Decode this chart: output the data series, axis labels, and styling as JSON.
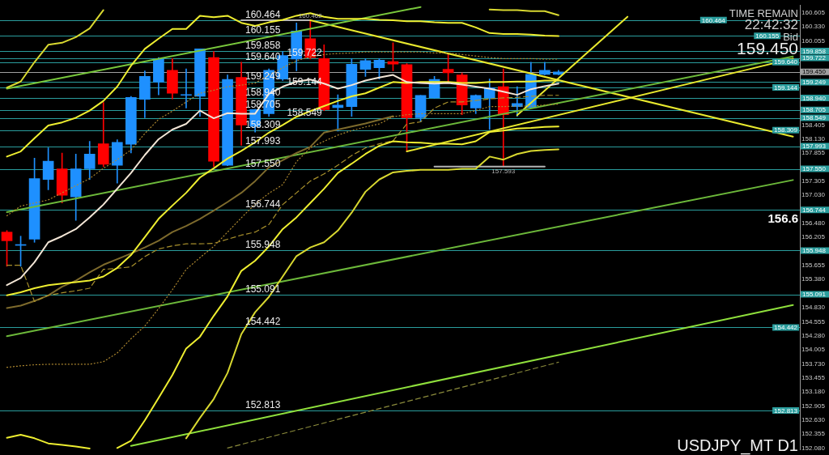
{
  "chart_data": {
    "type": "candlestick",
    "title": "USDJPY_MT D1",
    "categories": [
      null,
      null,
      null,
      null,
      null,
      null,
      null,
      null,
      null,
      null,
      null,
      null,
      null,
      null,
      null,
      null,
      null,
      null,
      null,
      null,
      null,
      null,
      null,
      null,
      null,
      null,
      null,
      null,
      null,
      null,
      null,
      null,
      null,
      null,
      null,
      null,
      null,
      null,
      null,
      null,
      null,
      null,
      null,
      null,
      null,
      null,
      null,
      null,
      null,
      null,
      null,
      null,
      null,
      null,
      null,
      null,
      null,
      null
    ],
    "ohlc": [
      [
        156.31,
        156.34,
        155.64,
        156.14
      ],
      [
        156.05,
        156.23,
        155.64,
        156.06
      ],
      [
        156.17,
        157.76,
        156.11,
        157.36
      ],
      [
        157.34,
        157.96,
        157.14,
        157.7
      ],
      [
        157.55,
        157.86,
        156.88,
        157.03
      ],
      [
        157.0,
        157.84,
        156.54,
        157.55
      ],
      [
        157.55,
        158.09,
        157.34,
        157.84
      ],
      [
        158.04,
        158.85,
        157.59,
        157.64
      ],
      [
        157.62,
        158.12,
        157.27,
        158.07
      ],
      [
        158.03,
        158.97,
        157.86,
        158.95
      ],
      [
        158.91,
        159.47,
        158.55,
        159.36
      ],
      [
        159.25,
        159.73,
        159.0,
        159.71
      ],
      [
        159.48,
        159.71,
        158.92,
        159.03
      ],
      [
        158.99,
        159.51,
        158.74,
        159.0
      ],
      [
        158.97,
        159.9,
        158.58,
        159.9
      ],
      [
        159.73,
        159.85,
        157.59,
        157.7
      ],
      [
        157.62,
        159.39,
        157.61,
        159.3
      ],
      [
        159.34,
        159.64,
        158.01,
        158.41
      ],
      [
        158.38,
        158.72,
        158.27,
        158.71
      ],
      [
        158.63,
        159.51,
        158.58,
        159.48
      ],
      [
        159.31,
        159.85,
        159.28,
        159.77
      ],
      [
        159.7,
        160.41,
        159.47,
        160.25
      ],
      [
        160.1,
        160.462,
        159.7,
        159.73
      ],
      [
        159.71,
        159.98,
        158.69,
        158.71
      ],
      [
        158.75,
        159.0,
        158.29,
        158.8
      ],
      [
        158.77,
        159.71,
        158.58,
        159.6
      ],
      [
        159.5,
        159.71,
        159.36,
        159.67
      ],
      [
        159.53,
        159.71,
        159.31,
        159.68
      ],
      [
        159.65,
        160.02,
        159.47,
        159.6
      ],
      [
        159.59,
        159.61,
        157.89,
        158.55
      ],
      [
        158.55,
        158.99,
        158.47,
        158.99
      ],
      [
        158.94,
        159.36,
        158.93,
        159.3
      ],
      [
        159.5,
        159.79,
        159.25,
        159.43
      ],
      [
        159.39,
        159.43,
        158.61,
        158.8
      ],
      [
        158.74,
        159.0,
        158.63,
        158.99
      ],
      [
        158.94,
        159.31,
        158.32,
        159.14
      ],
      [
        159.16,
        159.51,
        157.593,
        158.61
      ],
      [
        158.77,
        159.16,
        158.58,
        158.83
      ],
      [
        158.75,
        159.64,
        158.74,
        159.4
      ],
      [
        159.4,
        159.64,
        159.39,
        159.48
      ],
      [
        159.4,
        159.48,
        159.39,
        159.45
      ],
      null,
      null,
      null,
      null,
      null,
      null,
      null,
      null,
      null,
      null,
      null,
      null,
      null,
      null,
      null,
      null,
      null
    ],
    "colors": [
      "#ff0000",
      "#1e90ff",
      "#1e90ff",
      "#1e90ff",
      "#ff0000",
      "#1e90ff",
      "#1e90ff",
      "#ff0000",
      "#1e90ff",
      "#1e90ff",
      "#1e90ff",
      "#1e90ff",
      "#ff0000",
      "#1e90ff",
      "#1e90ff",
      "#ff0000",
      "#1e90ff",
      "#ff0000",
      "#1e90ff",
      "#1e90ff",
      "#1e90ff",
      "#1e90ff",
      "#ff0000",
      "#ff0000",
      "#1e90ff",
      "#1e90ff",
      "#1e90ff",
      "#1e90ff",
      "#ff0000",
      "#ff0000",
      "#1e90ff",
      "#1e90ff",
      "#ff0000",
      "#ff0000",
      "#1e90ff",
      "#1e90ff",
      "#ff0000",
      "#1e90ff",
      "#1e90ff",
      "#1e90ff",
      "#1e90ff",
      null,
      null,
      null,
      null,
      null,
      null,
      null,
      null,
      null,
      null,
      null,
      null,
      null,
      null,
      null,
      null,
      null
    ],
    "series": [
      {
        "type": "line",
        "color": "#f3e6d6",
        "values": [
          155.27,
          155.41,
          155.72,
          156.11,
          156.23,
          156.37,
          156.6,
          156.85,
          157.16,
          157.47,
          157.82,
          158.13,
          158.32,
          158.43,
          158.69,
          158.54,
          158.64,
          158.63,
          158.63,
          159.02,
          159.16,
          159.26,
          159.3,
          159.22,
          159.12,
          159.19,
          159.28,
          159.34,
          159.39,
          159.25,
          159.23,
          159.22,
          159.23,
          159.2,
          159.16,
          159.12,
          159.06,
          159.0,
          159.11,
          159.17,
          159.22,
          null,
          null,
          null,
          null,
          null,
          null,
          null,
          null,
          null,
          null,
          null,
          null,
          null,
          null,
          null,
          null,
          null
        ]
      },
      {
        "type": "line",
        "color": "#eeee30",
        "values": [
          155.07,
          155.13,
          155.21,
          155.27,
          155.3,
          155.33,
          155.36,
          155.44,
          155.61,
          155.86,
          156.21,
          156.57,
          156.83,
          157.08,
          157.38,
          157.56,
          157.75,
          157.9,
          158.07,
          158.26,
          158.41,
          158.57,
          158.68,
          158.78,
          158.88,
          158.97,
          159.03,
          159.14,
          159.25,
          159.23,
          159.25,
          159.25,
          159.25,
          159.23,
          159.23,
          159.25,
          159.25,
          159.26,
          159.26,
          159.28,
          159.28,
          null,
          null,
          null,
          null,
          null,
          null,
          null,
          null,
          null,
          null,
          null,
          null,
          null,
          null,
          null,
          null,
          null
        ]
      },
      {
        "type": "line",
        "color": "#eeee30",
        "values": [
          157.79,
          157.89,
          158.15,
          158.4,
          158.46,
          158.55,
          158.69,
          158.88,
          159.16,
          159.57,
          159.9,
          160.1,
          160.29,
          160.29,
          160.55,
          160.52,
          160.55,
          160.41,
          160.35,
          160.42,
          160.47,
          160.55,
          160.6,
          160.53,
          160.49,
          160.49,
          160.49,
          160.47,
          160.46,
          160.44,
          160.44,
          160.42,
          160.41,
          160.41,
          160.32,
          160.21,
          160.19,
          160.19,
          160.18,
          160.16,
          160.15,
          null,
          null,
          null,
          null,
          null,
          null,
          null,
          null,
          null,
          null,
          null,
          null,
          null,
          null,
          null,
          null,
          null
        ]
      },
      {
        "type": "line",
        "color": "#eeee30",
        "values": [
          152.28,
          152.34,
          152.27,
          152.17,
          152.14,
          152.11,
          152.07,
          null,
          null,
          null,
          null,
          null,
          null,
          null,
          null,
          null,
          null,
          null,
          null,
          null,
          null,
          null,
          null,
          null,
          null,
          null,
          null,
          null,
          null,
          null,
          null,
          null,
          null,
          null,
          null,
          null,
          null,
          null,
          null,
          null,
          null,
          null,
          null,
          null,
          null,
          null,
          null,
          null,
          null,
          null,
          null,
          null,
          null,
          null,
          null,
          null,
          null,
          null
        ]
      },
      {
        "type": "line",
        "color": "#eeee30",
        "values": [
          null,
          null,
          null,
          null,
          null,
          null,
          null,
          null,
          152.08,
          152.22,
          152.62,
          153.06,
          153.51,
          154.03,
          154.26,
          154.67,
          155.05,
          155.55,
          155.75,
          156.03,
          156.37,
          156.6,
          156.88,
          157.16,
          157.47,
          157.65,
          157.84,
          158.0,
          158.09,
          158.07,
          158.06,
          158.04,
          158.04,
          158.03,
          158.09,
          158.27,
          158.3,
          158.34,
          158.35,
          158.37,
          158.38,
          null,
          null,
          null,
          null,
          null,
          null,
          null,
          null,
          null,
          null,
          null,
          null,
          null,
          null,
          null,
          null,
          null
        ]
      },
      {
        "type": "line",
        "color": "#d8d830",
        "values": [
          159.14,
          159.26,
          159.64,
          159.98,
          160.02,
          160.13,
          160.3,
          160.66,
          null,
          null,
          null,
          null,
          null,
          null,
          null,
          null,
          null,
          null,
          null,
          null,
          null,
          null,
          null,
          null,
          null,
          null,
          null,
          null,
          null,
          null,
          null,
          null,
          null,
          null,
          null,
          null,
          null,
          null,
          null,
          null,
          null,
          null,
          null,
          null,
          null,
          null,
          null,
          null,
          null,
          null,
          null,
          null,
          null,
          null,
          null,
          null,
          null,
          null
        ]
      },
      {
        "type": "line",
        "color": "#d8d830",
        "values": [
          null,
          null,
          null,
          null,
          null,
          null,
          null,
          null,
          null,
          null,
          null,
          null,
          null,
          null,
          null,
          null,
          null,
          null,
          null,
          null,
          null,
          null,
          null,
          null,
          null,
          null,
          null,
          null,
          null,
          null,
          null,
          null,
          null,
          null,
          null,
          160.67,
          160.66,
          160.66,
          160.64,
          160.64,
          160.56,
          null,
          null,
          null,
          null,
          null,
          null,
          null,
          null,
          null,
          null,
          null,
          null,
          null,
          null,
          null,
          null,
          null
        ]
      },
      {
        "type": "line",
        "color": "#d8d830",
        "values": [
          null,
          null,
          null,
          null,
          null,
          null,
          null,
          null,
          null,
          null,
          null,
          null,
          null,
          152.27,
          152.67,
          153.04,
          153.55,
          154.31,
          154.74,
          155.04,
          155.44,
          155.84,
          156.01,
          156.11,
          156.34,
          156.69,
          157.1,
          157.34,
          157.48,
          157.51,
          157.53,
          157.53,
          157.53,
          157.55,
          157.55,
          157.79,
          157.73,
          157.84,
          157.9,
          157.92,
          157.93,
          null,
          null,
          null,
          null,
          null,
          null,
          null,
          null,
          null,
          null,
          null,
          null,
          null,
          null,
          null,
          null,
          null
        ]
      },
      {
        "type": "line",
        "color": "#b08a30",
        "line_style": "dotted",
        "values": [
          156.63,
          156.82,
          156.88,
          156.94,
          157.08,
          157.22,
          157.36,
          157.56,
          157.73,
          157.92,
          158.24,
          158.52,
          158.68,
          158.86,
          159.03,
          159.09,
          159.16,
          159.19,
          159.23,
          159.39,
          159.53,
          159.67,
          159.74,
          159.79,
          159.81,
          159.82,
          159.84,
          159.84,
          159.84,
          159.84,
          159.84,
          159.82,
          159.82,
          159.79,
          159.76,
          159.73,
          159.71,
          159.71,
          159.71,
          159.7,
          159.7,
          null,
          null,
          null,
          null,
          null,
          null,
          null,
          null,
          null,
          null,
          null,
          null,
          null,
          null,
          null,
          null,
          null
        ]
      },
      {
        "type": "line",
        "color": "#b08a30",
        "line_style": "dotted",
        "values": [
          153.66,
          153.69,
          153.71,
          153.72,
          153.72,
          153.72,
          153.72,
          153.77,
          153.94,
          154.22,
          154.47,
          154.81,
          155.18,
          155.58,
          155.81,
          156.03,
          156.31,
          156.59,
          156.86,
          157.07,
          157.24,
          157.69,
          157.96,
          158.09,
          158.21,
          158.3,
          158.37,
          158.43,
          158.57,
          158.61,
          158.63,
          158.63,
          158.63,
          158.63,
          158.69,
          158.77,
          158.77,
          158.78,
          158.78,
          158.8,
          158.82,
          null,
          null,
          null,
          null,
          null,
          null,
          null,
          null,
          null,
          null,
          null,
          null,
          null,
          null,
          null,
          null,
          null
        ]
      },
      {
        "type": "line",
        "color": "#a8902c",
        "line_style": "dashed",
        "values": [
          155.66,
          155.66,
          154.95,
          155.07,
          155.12,
          155.16,
          155.21,
          155.58,
          155.6,
          155.63,
          155.83,
          155.98,
          156.04,
          156.08,
          156.08,
          156.09,
          156.17,
          156.25,
          156.31,
          156.46,
          156.85,
          157.08,
          157.31,
          157.45,
          157.62,
          157.81,
          157.96,
          158.04,
          158.1,
          158.43,
          158.47,
          158.74,
          158.86,
          158.86,
          158.89,
          158.92,
          158.94,
          158.95,
          158.97,
          158.99,
          158.99,
          null,
          null,
          null,
          null,
          null,
          null,
          null,
          null,
          null,
          null,
          null,
          null,
          null,
          null,
          null,
          null,
          null
        ]
      },
      {
        "type": "line",
        "color": "#7d6a2c",
        "values": [
          154.82,
          154.87,
          154.96,
          155.07,
          155.24,
          155.36,
          155.52,
          155.67,
          155.78,
          155.89,
          156.01,
          156.14,
          156.31,
          156.43,
          156.57,
          156.73,
          156.9,
          157.08,
          157.31,
          157.58,
          157.72,
          157.86,
          157.98,
          158.26,
          158.32,
          158.38,
          158.44,
          158.51,
          158.58,
          null,
          null,
          null,
          null,
          null,
          null,
          null,
          null,
          null,
          null,
          null,
          null,
          null,
          null,
          null,
          null,
          null,
          null,
          null,
          null,
          null,
          null,
          null,
          null,
          null,
          null,
          null,
          null,
          null
        ]
      },
      {
        "type": "line",
        "color": "#79c83c",
        "values": [
          159.12,
          null,
          null,
          null,
          null,
          null,
          null,
          null,
          null,
          null,
          null,
          null,
          null,
          null,
          null,
          null,
          null,
          null,
          null,
          null,
          null,
          null,
          null,
          null,
          null,
          null,
          null,
          null,
          null,
          null,
          160.72,
          null,
          null,
          null,
          null,
          null,
          null,
          null,
          null,
          null,
          null,
          null,
          null,
          null,
          null,
          null,
          null,
          null,
          null,
          null,
          null,
          null,
          null,
          null,
          null,
          null,
          null,
          null
        ]
      },
      {
        "type": "line",
        "color": "#6cb83a",
        "values": [
          156.7,
          null,
          null,
          null,
          null,
          null,
          null,
          null,
          null,
          null,
          null,
          null,
          null,
          null,
          null,
          null,
          null,
          null,
          null,
          null,
          null,
          null,
          null,
          null,
          null,
          null,
          null,
          null,
          null,
          null,
          null,
          null,
          null,
          null,
          null,
          null,
          null,
          null,
          null,
          null,
          null,
          null,
          null,
          null,
          null,
          null,
          null,
          null,
          null,
          null,
          null,
          null,
          null,
          null,
          null,
          null,
          null,
          159.75
        ]
      },
      {
        "type": "line",
        "color": "#6cb83a",
        "values": [
          154.27,
          null,
          null,
          null,
          null,
          null,
          null,
          null,
          null,
          null,
          null,
          null,
          null,
          null,
          null,
          null,
          null,
          null,
          null,
          null,
          null,
          null,
          null,
          null,
          null,
          null,
          null,
          null,
          null,
          null,
          null,
          null,
          null,
          null,
          null,
          null,
          null,
          null,
          null,
          null,
          null,
          null,
          null,
          null,
          null,
          null,
          null,
          null,
          null,
          null,
          null,
          null,
          null,
          null,
          null,
          null,
          null,
          157.33
        ]
      },
      {
        "type": "line",
        "color": "#8fe03c",
        "values": [
          null,
          null,
          null,
          null,
          null,
          null,
          null,
          null,
          null,
          152.12,
          null,
          null,
          null,
          null,
          null,
          null,
          null,
          null,
          null,
          null,
          null,
          null,
          null,
          null,
          null,
          null,
          null,
          null,
          null,
          null,
          null,
          null,
          null,
          null,
          null,
          null,
          null,
          null,
          null,
          null,
          null,
          null,
          null,
          null,
          null,
          null,
          null,
          null,
          null,
          null,
          null,
          null,
          null,
          null,
          null,
          null,
          null,
          154.88
        ]
      },
      {
        "type": "line",
        "color": "#8c8c3c",
        "line_style": "dashed",
        "values": [
          null,
          null,
          null,
          null,
          null,
          null,
          null,
          null,
          null,
          null,
          null,
          null,
          null,
          null,
          null,
          null,
          152.08,
          null,
          null,
          null,
          null,
          null,
          null,
          null,
          null,
          null,
          null,
          null,
          null,
          null,
          null,
          null,
          null,
          null,
          null,
          null,
          null,
          null,
          null,
          null,
          153.76,
          null,
          null,
          null,
          null,
          null,
          null,
          null,
          null,
          null,
          null,
          null,
          null,
          null,
          null,
          null,
          null,
          null
        ]
      },
      {
        "type": "line",
        "color": "#e8e82e",
        "values": [
          null,
          null,
          null,
          null,
          null,
          null,
          null,
          null,
          null,
          null,
          null,
          null,
          null,
          null,
          null,
          null,
          null,
          null,
          null,
          null,
          null,
          null,
          160.46,
          null,
          null,
          null,
          null,
          null,
          null,
          null,
          null,
          null,
          null,
          null,
          null,
          null,
          null,
          null,
          null,
          null,
          null,
          null,
          null,
          null,
          null,
          null,
          null,
          null,
          null,
          null,
          null,
          null,
          null,
          null,
          null,
          null,
          null,
          158.18
        ]
      },
      {
        "type": "line",
        "color": "#e8e82e",
        "values": [
          null,
          null,
          null,
          null,
          null,
          null,
          null,
          null,
          null,
          null,
          null,
          null,
          null,
          null,
          null,
          null,
          null,
          null,
          null,
          null,
          null,
          null,
          null,
          null,
          null,
          null,
          null,
          null,
          null,
          157.89,
          null,
          null,
          null,
          null,
          null,
          null,
          null,
          null,
          null,
          null,
          null,
          null,
          null,
          null,
          null,
          null,
          null,
          null,
          null,
          null,
          null,
          null,
          null,
          null,
          null,
          null,
          null,
          159.71
        ]
      },
      {
        "type": "line",
        "color": "#e8e82e",
        "values": [
          null,
          null,
          null,
          null,
          null,
          null,
          null,
          null,
          null,
          null,
          null,
          null,
          null,
          null,
          null,
          null,
          null,
          null,
          null,
          null,
          null,
          null,
          null,
          null,
          null,
          null,
          null,
          null,
          null,
          null,
          null,
          null,
          null,
          null,
          null,
          null,
          null,
          158.6,
          null,
          null,
          null,
          null,
          null,
          null,
          null,
          160.53,
          null,
          null,
          null,
          null,
          null,
          null,
          null,
          null,
          null,
          null,
          null,
          null
        ]
      },
      {
        "type": "line",
        "name": "160.462",
        "color": "#b4b4b4",
        "values": [
          null,
          null,
          null,
          null,
          null,
          null,
          null,
          null,
          null,
          null,
          null,
          null,
          null,
          null,
          null,
          null,
          null,
          160.462,
          160.462,
          160.462,
          160.462,
          160.462,
          160.462,
          null,
          null,
          null,
          null,
          null,
          null,
          null,
          null,
          null,
          null,
          null,
          null,
          null,
          null,
          null,
          null,
          null,
          null,
          null,
          null,
          null,
          null,
          null,
          null,
          null,
          null,
          null,
          null,
          null,
          null,
          null,
          null,
          null,
          null,
          null
        ]
      },
      {
        "type": "line",
        "name": "157.593",
        "color": "#b4b4b4",
        "values": [
          null,
          null,
          null,
          null,
          null,
          null,
          null,
          null,
          null,
          null,
          null,
          null,
          null,
          null,
          null,
          null,
          null,
          null,
          null,
          null,
          null,
          null,
          null,
          null,
          null,
          null,
          null,
          null,
          null,
          null,
          null,
          157.593,
          157.593,
          157.593,
          157.593,
          157.593,
          157.593,
          157.593,
          157.593,
          157.593,
          null,
          null,
          null,
          null,
          null,
          null,
          null,
          null,
          null,
          null,
          null,
          null,
          null,
          null,
          null,
          null,
          null,
          null
        ]
      }
    ],
    "ylim": [
      152.05,
      160.75
    ],
    "yticks": [
      160.605,
      {
        "value": 160.33,
        "label": "160.330"
      },
      160.055,
      158.405,
      {
        "value": 158.13,
        "label": "158.130"
      },
      157.855,
      157.305,
      {
        "value": 157.03,
        "label": "157.030"
      },
      {
        "value": 156.48,
        "label": "156.480"
      },
      156.205,
      155.655,
      {
        "value": 155.38,
        "label": "155.380"
      },
      {
        "value": 154.83,
        "label": "154.830"
      },
      154.555,
      {
        "value": 154.28,
        "label": "154.280"
      },
      154.005,
      {
        "value": 153.73,
        "label": "153.730"
      },
      153.455,
      {
        "value": 153.18,
        "label": "153.180"
      },
      152.905,
      {
        "value": 152.63,
        "label": "152.630"
      },
      152.355,
      {
        "value": 152.08,
        "label": "152.080"
      }
    ],
    "tick_labels": "y",
    "ref_lines": [
      {
        "axis": "y",
        "value": 160.464,
        "label": "160.464",
        "color": "#2a9d9d"
      },
      {
        "axis": "y",
        "value": 160.155,
        "label": "160.155",
        "color": "#2a9d9d"
      },
      {
        "axis": "y",
        "value": 159.858,
        "label": "159.858",
        "color": "#2a9d9d"
      },
      {
        "axis": "y",
        "value": 159.722,
        "label": "159.722",
        "color": "#2a9d9d"
      },
      {
        "axis": "y",
        "value": 159.64,
        "label": "159.640",
        "color": "#2a9d9d"
      },
      {
        "axis": "y",
        "value": 159.45,
        "label": "159.450",
        "color": "#a0a0a0"
      },
      {
        "axis": "y",
        "value": 159.249,
        "label": "159.249",
        "color": "#2a9d9d"
      },
      {
        "axis": "y",
        "value": 159.144,
        "label": "159.144",
        "color": "#2a9d9d"
      },
      {
        "axis": "y",
        "value": 158.94,
        "label": "158.940",
        "color": "#2a9d9d"
      },
      {
        "axis": "y",
        "value": 158.705,
        "label": "158.705",
        "color": "#2a9d9d"
      },
      {
        "axis": "y",
        "value": 158.549,
        "label": "158.549",
        "color": "#2a9d9d"
      },
      {
        "axis": "y",
        "value": 158.309,
        "label": "158.309",
        "color": "#2a9d9d"
      },
      {
        "axis": "y",
        "value": 157.993,
        "label": "157.993",
        "color": "#2a9d9d"
      },
      {
        "axis": "y",
        "value": 157.55,
        "label": "157.550",
        "color": "#2a9d9d"
      },
      {
        "axis": "y",
        "value": 156.744,
        "label": "156.744",
        "color": "#2a9d9d"
      },
      {
        "axis": "y",
        "value": 155.948,
        "label": "155.948",
        "color": "#2a9d9d"
      },
      {
        "axis": "y",
        "value": 155.091,
        "label": "155.091",
        "color": "#2a9d9d"
      },
      {
        "axis": "y",
        "value": 154.442,
        "label": "154.442",
        "color": "#2a9d9d"
      },
      {
        "axis": "y",
        "value": 152.813,
        "label": "152.813",
        "color": "#2a9d9d"
      }
    ],
    "annotations": [
      {
        "text": "160.464",
        "y": 160.464
      },
      {
        "text": "160.155",
        "y": 160.155
      },
      {
        "text": "159.858",
        "y": 159.858
      },
      {
        "text": "159.722",
        "y": 159.722
      },
      {
        "text": "159.640",
        "y": 159.64
      },
      {
        "text": "159.249",
        "y": 159.249
      },
      {
        "text": "159.144",
        "y": 159.144
      },
      {
        "text": "158.940",
        "y": 158.94
      },
      {
        "text": "158.705",
        "y": 158.705
      },
      {
        "text": "158.549",
        "y": 158.549
      },
      {
        "text": "158.309",
        "y": 158.309
      },
      {
        "text": "157.993",
        "y": 157.993
      },
      {
        "text": "157.550",
        "y": 157.55
      },
      {
        "text": "156.744",
        "y": 156.744
      },
      {
        "text": "155.948",
        "y": 155.948
      },
      {
        "text": "155.091",
        "y": 155.091
      },
      {
        "text": "154.442",
        "y": 154.442
      },
      {
        "text": "152.813",
        "y": 152.813
      },
      "TIME REMAIN",
      "22:42:32",
      "Bid",
      "159.450",
      "156.6"
    ]
  }
}
